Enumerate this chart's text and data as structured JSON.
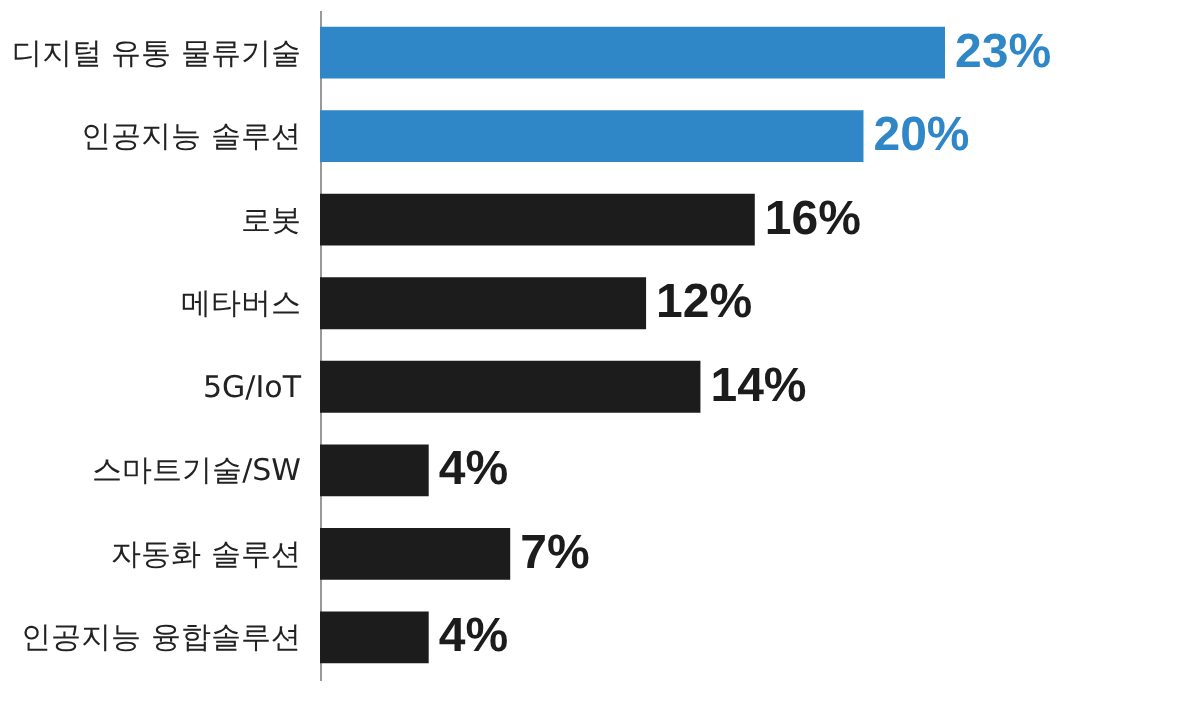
{
  "chart_data": {
    "type": "bar",
    "orientation": "horizontal",
    "categories": [
      "디지털 유통 물류기술",
      "인공지능 솔루션",
      "로봇",
      "메타버스",
      "5G/IoT",
      "스마트기술/SW",
      "자동화 솔루션",
      "인공지능 융합솔루션"
    ],
    "values": [
      23,
      20,
      16,
      12,
      14,
      4,
      7,
      4
    ],
    "colors": [
      "#2f87c8",
      "#2f87c8",
      "#1c1c1c",
      "#1c1c1c",
      "#1c1c1c",
      "#1c1c1c",
      "#1c1c1c",
      "#1c1c1c"
    ],
    "value_labels": [
      "23%",
      "20%",
      "16%",
      "12%",
      "14%",
      "4%",
      "7%",
      "4%"
    ],
    "grid": false
  }
}
